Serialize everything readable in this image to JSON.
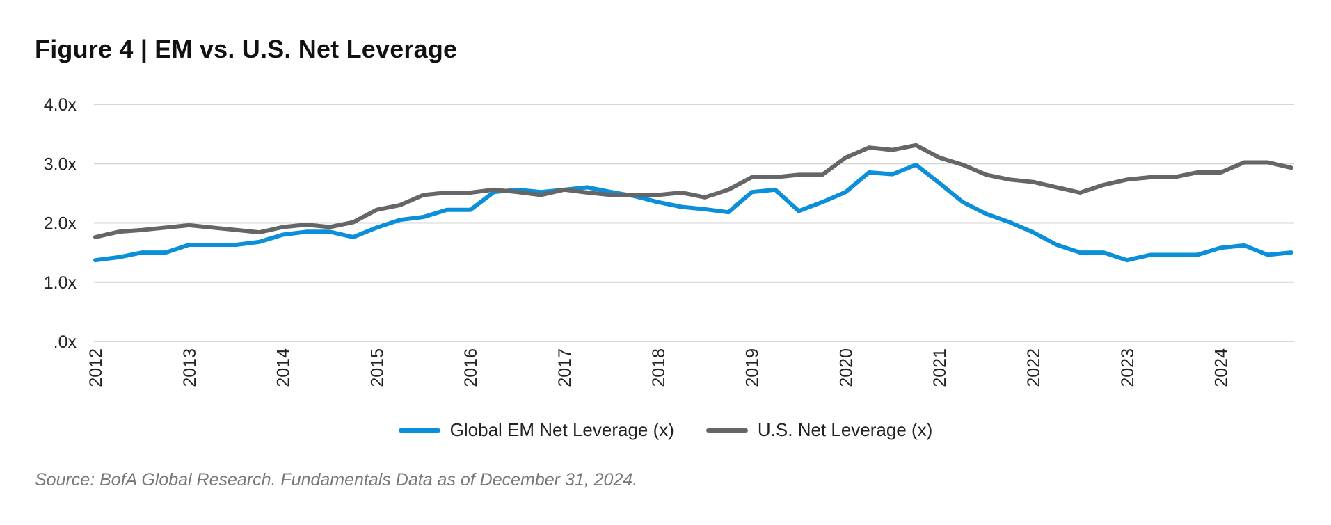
{
  "chart_data": {
    "type": "line",
    "title": "Figure 4  |  EM vs. U.S. Net Leverage",
    "xlabel": "",
    "ylabel": "",
    "ylim": [
      0,
      4
    ],
    "yticks": [
      ".0x",
      "1.0x",
      "2.0x",
      "3.0x",
      "4.0x"
    ],
    "ytick_values": [
      0,
      1,
      2,
      3,
      4
    ],
    "xticks": [
      "2012",
      "2013",
      "2014",
      "2015",
      "2016",
      "2017",
      "2018",
      "2019",
      "2020",
      "2021",
      "2022",
      "2023",
      "2024"
    ],
    "x_frequency": "quarterly",
    "grid": true,
    "legend_position": "bottom",
    "series": [
      {
        "name": "Global EM Net Leverage (x)",
        "color": "#0a8fd8",
        "values": [
          1.37,
          1.42,
          1.5,
          1.5,
          1.63,
          1.63,
          1.63,
          1.68,
          1.8,
          1.85,
          1.85,
          1.76,
          1.92,
          2.05,
          2.1,
          2.22,
          2.22,
          2.52,
          2.56,
          2.52,
          2.56,
          2.6,
          2.52,
          2.45,
          2.35,
          2.27,
          2.23,
          2.18,
          2.52,
          2.56,
          2.2,
          2.35,
          2.52,
          2.85,
          2.82,
          2.98,
          2.67,
          2.35,
          2.15,
          2.01,
          1.84,
          1.63,
          1.5,
          1.5,
          1.37,
          1.46,
          1.46,
          1.46,
          1.58,
          1.62,
          1.46,
          1.5
        ]
      },
      {
        "name": "U.S. Net Leverage (x)",
        "color": "#666666",
        "values": [
          1.76,
          1.85,
          1.88,
          1.92,
          1.96,
          1.92,
          1.88,
          1.84,
          1.93,
          1.97,
          1.93,
          2.01,
          2.22,
          2.3,
          2.47,
          2.51,
          2.51,
          2.56,
          2.52,
          2.47,
          2.56,
          2.51,
          2.47,
          2.47,
          2.47,
          2.51,
          2.43,
          2.56,
          2.77,
          2.77,
          2.81,
          2.81,
          3.1,
          3.27,
          3.23,
          3.31,
          3.1,
          2.98,
          2.81,
          2.73,
          2.69,
          2.6,
          2.51,
          2.64,
          2.73,
          2.77,
          2.77,
          2.85,
          2.85,
          3.02,
          3.02,
          2.93
        ]
      }
    ]
  },
  "source": "Source: BofA Global Research. Fundamentals Data as of December 31, 2024."
}
